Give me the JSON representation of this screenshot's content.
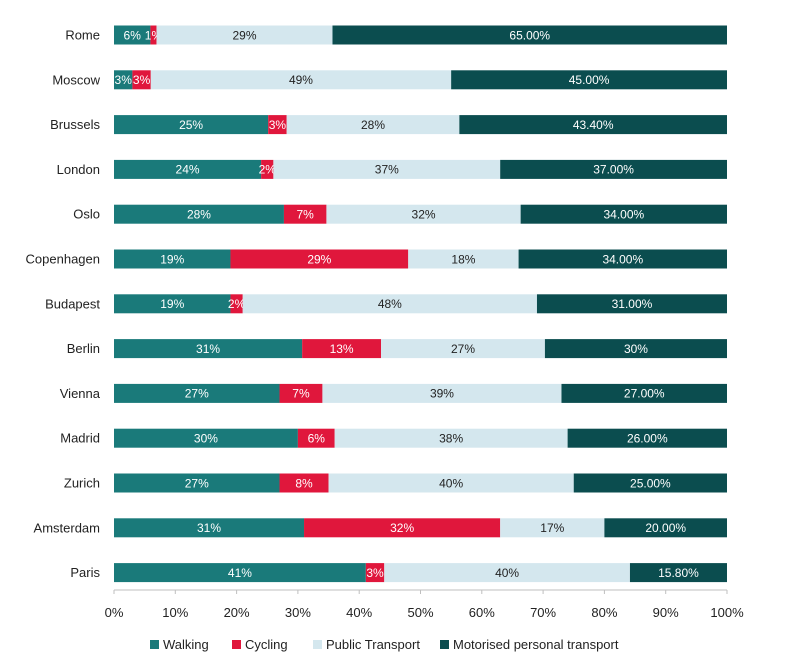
{
  "chart_data": {
    "type": "bar",
    "orientation": "horizontal",
    "stacked": "percent",
    "categories": [
      "Rome",
      "Moscow",
      "Brussels",
      "London",
      "Oslo",
      "Copenhagen",
      "Budapest",
      "Berlin",
      "Vienna",
      "Madrid",
      "Zurich",
      "Amsterdam",
      "Paris"
    ],
    "series": [
      {
        "name": "Walking",
        "color": "#1a7a7a",
        "values": [
          6,
          3,
          25,
          24,
          28,
          19,
          19,
          31,
          27,
          30,
          27,
          31,
          41
        ],
        "labels": [
          "6%",
          "3%",
          "25%",
          "24%",
          "28%",
          "19%",
          "19%",
          "31%",
          "27%",
          "30%",
          "27%",
          "31%",
          "41%"
        ]
      },
      {
        "name": "Cycling",
        "color": "#e0173c",
        "values": [
          1,
          3,
          3,
          2,
          7,
          29,
          2,
          13,
          7,
          6,
          8,
          32,
          3
        ],
        "labels": [
          "1%",
          "3%",
          "3%",
          "2%",
          "7%",
          "29%",
          "2%",
          "13%",
          "7%",
          "6%",
          "8%",
          "32%",
          "3%"
        ]
      },
      {
        "name": "Public Transport",
        "color": "#d4e7ee",
        "values": [
          29,
          49,
          28,
          37,
          32,
          18,
          48,
          27,
          39,
          38,
          40,
          17,
          40
        ],
        "labels": [
          "29%",
          "49%",
          "28%",
          "37%",
          "32%",
          "18%",
          "48%",
          "27%",
          "39%",
          "38%",
          "40%",
          "17%",
          "40%"
        ]
      },
      {
        "name": "Motorised personal transport",
        "color": "#0b4d4f",
        "values": [
          65.0,
          45.0,
          43.4,
          37.0,
          34.0,
          34.0,
          31.0,
          30,
          27.0,
          26.0,
          25.0,
          20.0,
          15.8
        ],
        "labels": [
          "65.00%",
          "45.00%",
          "43.40%",
          "37.00%",
          "34.00%",
          "34.00%",
          "31.00%",
          "30%",
          "27.00%",
          "26.00%",
          "25.00%",
          "20.00%",
          "15.80%"
        ]
      }
    ],
    "x_ticks": [
      "0%",
      "10%",
      "20%",
      "30%",
      "40%",
      "50%",
      "60%",
      "70%",
      "80%",
      "90%",
      "100%"
    ],
    "xlim": [
      0,
      100
    ],
    "grid": false,
    "legend_position": "bottom"
  }
}
